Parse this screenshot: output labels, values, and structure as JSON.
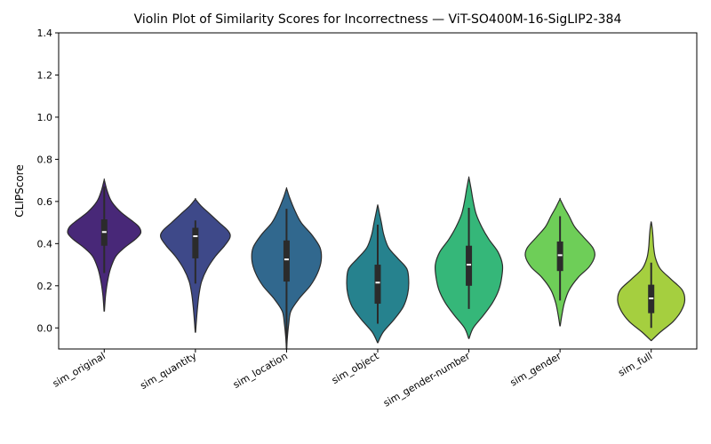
{
  "chart_data": {
    "type": "violin",
    "title": "Violin Plot of Similarity Scores for Incorrectness — ViT-SO400M-16-SigLIP2-384",
    "xlabel": "",
    "ylabel": "CLIPScore",
    "ylim": [
      -0.1,
      1.4
    ],
    "yticks": [
      0.0,
      0.2,
      0.4,
      0.6,
      0.8,
      1.0,
      1.2,
      1.4
    ],
    "ytick_labels": [
      "0.0",
      "0.2",
      "0.4",
      "0.6",
      "0.8",
      "1.0",
      "1.2",
      "1.4"
    ],
    "grid": false,
    "categories": [
      "sim_original",
      "sim_quantity",
      "sim_location",
      "sim_object",
      "sim_gender-number",
      "sim_gender",
      "sim_full"
    ],
    "series": [
      {
        "category": "sim_original",
        "color": "#482878",
        "median": 0.455,
        "q1": 0.39,
        "q3": 0.515,
        "whisker_low": 0.26,
        "whisker_high": 0.67,
        "density_low": 0.08,
        "density_high": 0.7,
        "profile": [
          [
            0.08,
            0.005
          ],
          [
            0.12,
            0.02
          ],
          [
            0.16,
            0.04
          ],
          [
            0.22,
            0.09
          ],
          [
            0.28,
            0.17
          ],
          [
            0.34,
            0.32
          ],
          [
            0.38,
            0.55
          ],
          [
            0.42,
            0.85
          ],
          [
            0.45,
            1.0
          ],
          [
            0.48,
            0.95
          ],
          [
            0.51,
            0.75
          ],
          [
            0.55,
            0.45
          ],
          [
            0.6,
            0.2
          ],
          [
            0.65,
            0.08
          ],
          [
            0.7,
            0.005
          ]
        ]
      },
      {
        "category": "sim_quantity",
        "color": "#3e4989",
        "median": 0.435,
        "q1": 0.33,
        "q3": 0.475,
        "whisker_low": 0.21,
        "whisker_high": 0.51,
        "density_low": -0.02,
        "density_high": 0.61,
        "profile": [
          [
            -0.02,
            0.005
          ],
          [
            0.04,
            0.03
          ],
          [
            0.1,
            0.06
          ],
          [
            0.16,
            0.1
          ],
          [
            0.22,
            0.17
          ],
          [
            0.28,
            0.32
          ],
          [
            0.34,
            0.55
          ],
          [
            0.39,
            0.8
          ],
          [
            0.43,
            0.95
          ],
          [
            0.46,
            0.9
          ],
          [
            0.5,
            0.65
          ],
          [
            0.54,
            0.4
          ],
          [
            0.58,
            0.15
          ],
          [
            0.61,
            0.005
          ]
        ]
      },
      {
        "category": "sim_location",
        "color": "#31688e",
        "median": 0.325,
        "q1": 0.22,
        "q3": 0.415,
        "whisker_low": -0.07,
        "whisker_high": 0.565,
        "density_low": -0.1,
        "density_high": 0.66,
        "profile": [
          [
            -0.1,
            0.005
          ],
          [
            -0.05,
            0.02
          ],
          [
            0.02,
            0.06
          ],
          [
            0.08,
            0.12
          ],
          [
            0.14,
            0.35
          ],
          [
            0.2,
            0.65
          ],
          [
            0.26,
            0.85
          ],
          [
            0.32,
            0.95
          ],
          [
            0.38,
            0.92
          ],
          [
            0.44,
            0.7
          ],
          [
            0.5,
            0.4
          ],
          [
            0.56,
            0.22
          ],
          [
            0.62,
            0.08
          ],
          [
            0.66,
            0.005
          ]
        ]
      },
      {
        "category": "sim_object",
        "color": "#26828e",
        "median": 0.215,
        "q1": 0.115,
        "q3": 0.3,
        "whisker_low": 0.02,
        "whisker_high": 0.49,
        "density_low": -0.07,
        "density_high": 0.58,
        "profile": [
          [
            -0.07,
            0.005
          ],
          [
            -0.02,
            0.15
          ],
          [
            0.04,
            0.45
          ],
          [
            0.1,
            0.7
          ],
          [
            0.16,
            0.82
          ],
          [
            0.22,
            0.85
          ],
          [
            0.28,
            0.8
          ],
          [
            0.33,
            0.55
          ],
          [
            0.38,
            0.3
          ],
          [
            0.44,
            0.17
          ],
          [
            0.5,
            0.1
          ],
          [
            0.55,
            0.04
          ],
          [
            0.58,
            0.005
          ]
        ]
      },
      {
        "category": "sim_gender-number",
        "color": "#35b779",
        "median": 0.3,
        "q1": 0.2,
        "q3": 0.39,
        "whisker_low": 0.09,
        "whisker_high": 0.57,
        "density_low": -0.05,
        "density_high": 0.71,
        "profile": [
          [
            -0.05,
            0.005
          ],
          [
            0.0,
            0.12
          ],
          [
            0.06,
            0.4
          ],
          [
            0.12,
            0.65
          ],
          [
            0.18,
            0.82
          ],
          [
            0.24,
            0.9
          ],
          [
            0.3,
            0.92
          ],
          [
            0.36,
            0.8
          ],
          [
            0.42,
            0.55
          ],
          [
            0.48,
            0.35
          ],
          [
            0.54,
            0.2
          ],
          [
            0.6,
            0.12
          ],
          [
            0.66,
            0.06
          ],
          [
            0.71,
            0.005
          ]
        ]
      },
      {
        "category": "sim_gender",
        "color": "#6ece58",
        "median": 0.345,
        "q1": 0.27,
        "q3": 0.41,
        "whisker_low": 0.13,
        "whisker_high": 0.53,
        "density_low": 0.01,
        "density_high": 0.61,
        "profile": [
          [
            0.01,
            0.005
          ],
          [
            0.06,
            0.05
          ],
          [
            0.12,
            0.12
          ],
          [
            0.18,
            0.25
          ],
          [
            0.24,
            0.5
          ],
          [
            0.29,
            0.8
          ],
          [
            0.34,
            0.95
          ],
          [
            0.38,
            0.9
          ],
          [
            0.43,
            0.65
          ],
          [
            0.48,
            0.4
          ],
          [
            0.53,
            0.25
          ],
          [
            0.57,
            0.12
          ],
          [
            0.61,
            0.005
          ]
        ]
      },
      {
        "category": "sim_full",
        "color": "#a5cf3f",
        "median": 0.14,
        "q1": 0.07,
        "q3": 0.205,
        "whisker_low": 0.0,
        "whisker_high": 0.31,
        "density_low": -0.06,
        "density_high": 0.5,
        "profile": [
          [
            -0.06,
            0.005
          ],
          [
            -0.02,
            0.25
          ],
          [
            0.03,
            0.6
          ],
          [
            0.08,
            0.82
          ],
          [
            0.13,
            0.92
          ],
          [
            0.18,
            0.85
          ],
          [
            0.23,
            0.55
          ],
          [
            0.28,
            0.25
          ],
          [
            0.33,
            0.12
          ],
          [
            0.38,
            0.07
          ],
          [
            0.43,
            0.05
          ],
          [
            0.47,
            0.03
          ],
          [
            0.5,
            0.005
          ]
        ]
      }
    ]
  }
}
